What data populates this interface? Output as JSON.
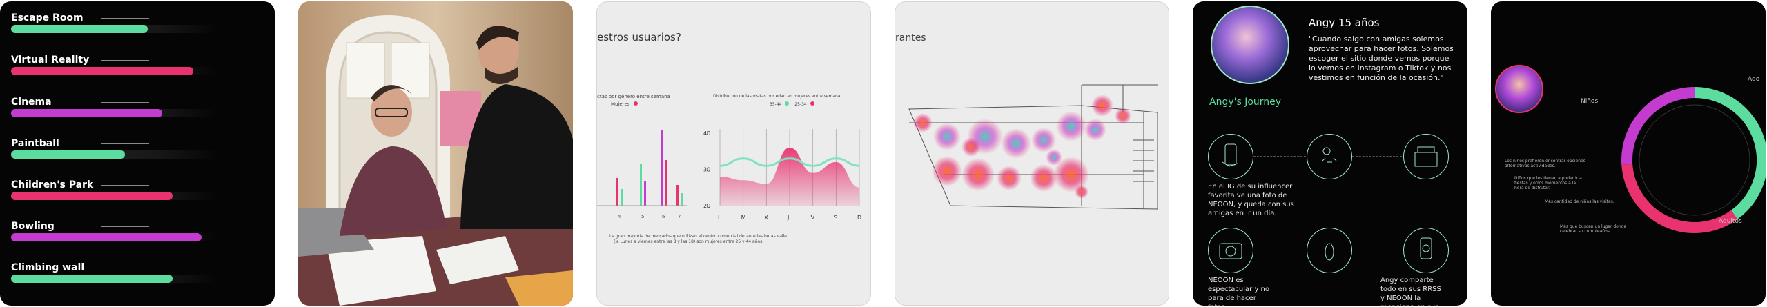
{
  "activities": {
    "items": [
      {
        "label": "Escape Room",
        "value": 0.66,
        "color": "#5ddca0"
      },
      {
        "label": "Virtual Reality",
        "value": 0.88,
        "color": "#e8336f"
      },
      {
        "label": "Cinema",
        "value": 0.73,
        "color": "#c43bd0"
      },
      {
        "label": "Paintball",
        "value": 0.55,
        "color": "#5ddca0"
      },
      {
        "label": "Children's Park",
        "value": 0.78,
        "color": "#e8336f"
      },
      {
        "label": "Bowling",
        "value": 0.92,
        "color": "#c43bd0"
      },
      {
        "label": "Climbing wall",
        "value": 0.78,
        "color": "#5ddca0"
      }
    ]
  },
  "photo": {
    "alt_name": "two-men-reviewing-documents"
  },
  "survey": {
    "heading": "estros usuarios?",
    "chart1_title": "ctas por género entre semana",
    "chart1_legend": "Mujeres",
    "chart2_title": "Distribución de las visitas por edad en mujeres entre semana",
    "chart2_legend_a": "35-44",
    "chart2_legend_b": "25-34",
    "footnote_1": "La gran mayoría de mercados que utilizan el centro comercial durante las horas valle",
    "footnote_2": "(la Lunes a viernes entre las 8 y las 18) son mujeres entre 25 y 44 años."
  },
  "chart_data": [
    {
      "type": "bar",
      "categories": [
        "4",
        "5",
        "6",
        "7"
      ],
      "values": [
        20,
        30,
        55,
        15
      ],
      "title": "ctas por género entre semana"
    },
    {
      "type": "area",
      "categories": [
        "L",
        "M",
        "X",
        "J",
        "V",
        "S",
        "D"
      ],
      "ylim": [
        20,
        40
      ],
      "yticks": [
        "40",
        "30",
        "20"
      ],
      "series": [
        {
          "name": "35-44",
          "values": [
            31,
            33,
            31,
            33,
            31,
            33,
            31
          ]
        },
        {
          "name": "25-34",
          "values": [
            28,
            27,
            26,
            36,
            29,
            32,
            25
          ]
        }
      ],
      "title": "Distribución de las visitas por edad en mujeres entre semana"
    },
    {
      "type": "pie",
      "categories": [
        "Niños",
        "Adolescentes",
        "Adultos"
      ],
      "values": [
        40,
        34,
        26
      ]
    }
  ],
  "heatmap": {
    "heading": "rantes"
  },
  "persona": {
    "name": "Angy 15 años",
    "quote": "\"Cuando salgo con amigas solemos aprovechar para hacer fotos. Solemos escoger el sitio donde vemos porque lo vemos en Instagram o Tiktok y nos vestimos en función de la ocasión.\"",
    "journey_title": "Angy's Journey",
    "step1": "En el IG de su influencer favorita ve una foto de NEOON, y queda con sus amigas en ir un día.",
    "step2": "NEOON es espectacular y no para de hacer fotos.",
    "step3": "Angy comparte todo en sus RRSS y NEOON la menciona en sus stories."
  },
  "donut": {
    "label_top": "Niños",
    "label_right": "Ado",
    "label_bottom": "Adultos",
    "note1": "Los niños prefieren encontrar opciones alternativas actividades.",
    "note2": "Niños que les tienen a poder ir a fiestas y otros momentos a la hora de disfrutar.",
    "note3": "Más cantidad de niños las visitas.",
    "note4": "Más que buscan un lugar donde celebrar su cumpleaños."
  }
}
